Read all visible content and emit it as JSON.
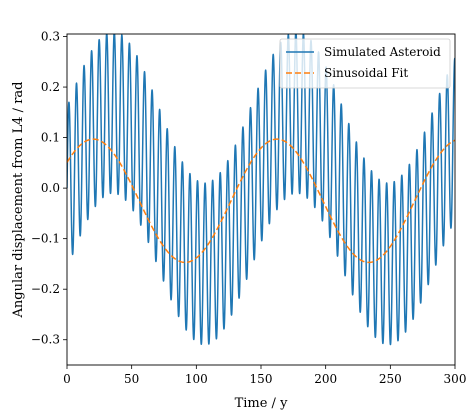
{
  "chart_data": {
    "type": "line",
    "title": "",
    "xlabel": "Time / y",
    "ylabel": "Angular displacement from L4 / rad",
    "xlim": [
      0,
      300
    ],
    "ylim": [
      -0.35,
      0.305
    ],
    "xticks": [
      0,
      50,
      100,
      150,
      200,
      250,
      300
    ],
    "yticks": [
      -0.3,
      -0.2,
      -0.1,
      0.0,
      0.1,
      0.2,
      0.3
    ],
    "xtick_labels": [
      "0",
      "50",
      "100",
      "150",
      "200",
      "250",
      "300"
    ],
    "ytick_labels": [
      "−0.3",
      "−0.2",
      "−0.1",
      "0.0",
      "0.1",
      "0.2",
      "0.3"
    ],
    "grid": false,
    "legend_position": "top-right",
    "series": [
      {
        "name": "Simulated Asteroid",
        "color": "#1f77b4",
        "style": "solid",
        "model": {
          "slow_amplitude": 0.15,
          "slow_period": 142,
          "fast_amplitude": 0.16,
          "fast_period": 5.85
        }
      },
      {
        "name": "Sinusoidal Fit",
        "color": "#ff7f0e",
        "style": "dashed",
        "model": {
          "amplitude": 0.122,
          "offset": -0.025,
          "period": 142,
          "phase": 0.67
        }
      }
    ]
  }
}
